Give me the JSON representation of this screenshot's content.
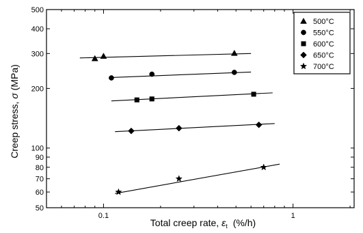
{
  "chart_data": {
    "type": "scatter",
    "xlabel": "Total creep rate, ε  (%/h)",
    "xlabel_main": "Total creep rate, ",
    "xlabel_symbol": "ε",
    "xlabel_sub": "t",
    "xlabel_unit": "(%/h)",
    "ylabel": "Creep stress, σ (MPa)",
    "ylabel_main": "Creep stress, ",
    "ylabel_symbol": "σ",
    "ylabel_unit": " (MPa)",
    "x_scale": "log",
    "y_scale": "log",
    "xlim": [
      0.05,
      2.1
    ],
    "ylim": [
      50,
      500
    ],
    "x_ticks": [
      {
        "value": 0.1,
        "label": "0.1"
      },
      {
        "value": 1,
        "label": "1"
      }
    ],
    "y_ticks": [
      {
        "value": 50,
        "label": "50"
      },
      {
        "value": 60,
        "label": "60"
      },
      {
        "value": 70,
        "label": "70"
      },
      {
        "value": 80,
        "label": "80"
      },
      {
        "value": 90,
        "label": "90"
      },
      {
        "value": 100,
        "label": "100"
      },
      {
        "value": 200,
        "label": "200"
      },
      {
        "value": 300,
        "label": "300"
      },
      {
        "value": 400,
        "label": "400"
      },
      {
        "value": 500,
        "label": "500"
      }
    ],
    "grid": false,
    "legend_position": "top-right",
    "series": [
      {
        "name": "500°C",
        "marker": "triangle",
        "points": [
          [
            0.09,
            283
          ],
          [
            0.1,
            291
          ],
          [
            0.49,
            301
          ]
        ],
        "fit": [
          [
            0.075,
            285
          ],
          [
            0.6,
            300
          ]
        ]
      },
      {
        "name": "550°C",
        "marker": "circle",
        "points": [
          [
            0.11,
            226
          ],
          [
            0.18,
            236
          ],
          [
            0.49,
            241
          ]
        ],
        "fit": [
          [
            0.11,
            227
          ],
          [
            0.6,
            242
          ]
        ]
      },
      {
        "name": "600°C",
        "marker": "square",
        "points": [
          [
            0.15,
            175
          ],
          [
            0.18,
            177
          ],
          [
            0.62,
            187
          ]
        ],
        "fit": [
          [
            0.11,
            173
          ],
          [
            0.78,
            190
          ]
        ]
      },
      {
        "name": "650°C",
        "marker": "diamond",
        "points": [
          [
            0.14,
            122
          ],
          [
            0.25,
            126
          ],
          [
            0.66,
            131
          ]
        ],
        "fit": [
          [
            0.115,
            121
          ],
          [
            0.8,
            133
          ]
        ]
      },
      {
        "name": "700°C",
        "marker": "star",
        "points": [
          [
            0.12,
            60
          ],
          [
            0.25,
            70
          ],
          [
            0.7,
            80
          ]
        ],
        "fit": [
          [
            0.115,
            59
          ],
          [
            0.85,
            83
          ]
        ]
      }
    ]
  }
}
